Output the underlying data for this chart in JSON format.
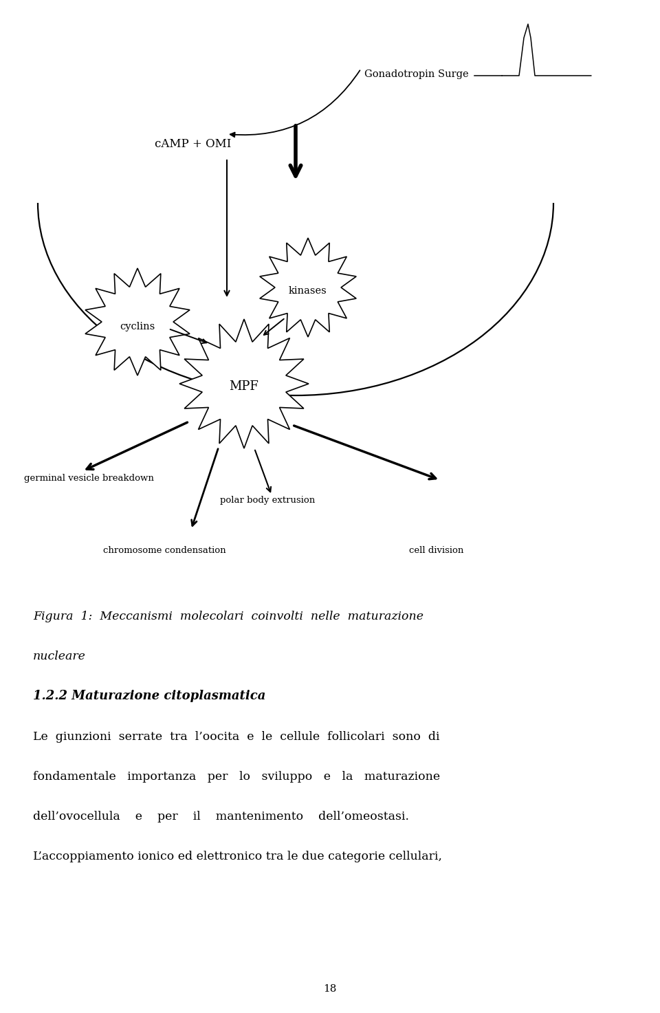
{
  "bg_color": "#ffffff",
  "fig_width": 9.6,
  "fig_height": 14.73,
  "title_line1": "Figura  1:  Meccanismi  molecolari  coinvolti  nelle  maturazione",
  "title_line2": "nucleare",
  "section_heading": "1.2.2 Maturazione citoplasmatica",
  "paragraph1": "Le  giunzioni  serrate  tra  l’oocita  e  le  cellule  follicolari  sono  di",
  "paragraph2": "fondamentale   importanza   per   lo   sviluppo   e   la   maturazione",
  "paragraph3": "dell’ovocellula    e    per    il    mantenimento    dell’omeostasi.",
  "paragraph4": "L’accoppiamento ionico ed elettronico tra le due categorie cellulari,",
  "page_number": "18",
  "label_gonadotropin": "Gonadotropin Surge",
  "label_camp": "cAMP + OMI",
  "label_cyclins": "cyclins",
  "label_kinases": "kinases",
  "label_mpf": "MPF",
  "label_gvb": "germinal vesicle breakdown",
  "label_pbe": "polar body extrusion",
  "label_cc": "chromosome condensation",
  "label_cd": "cell division"
}
